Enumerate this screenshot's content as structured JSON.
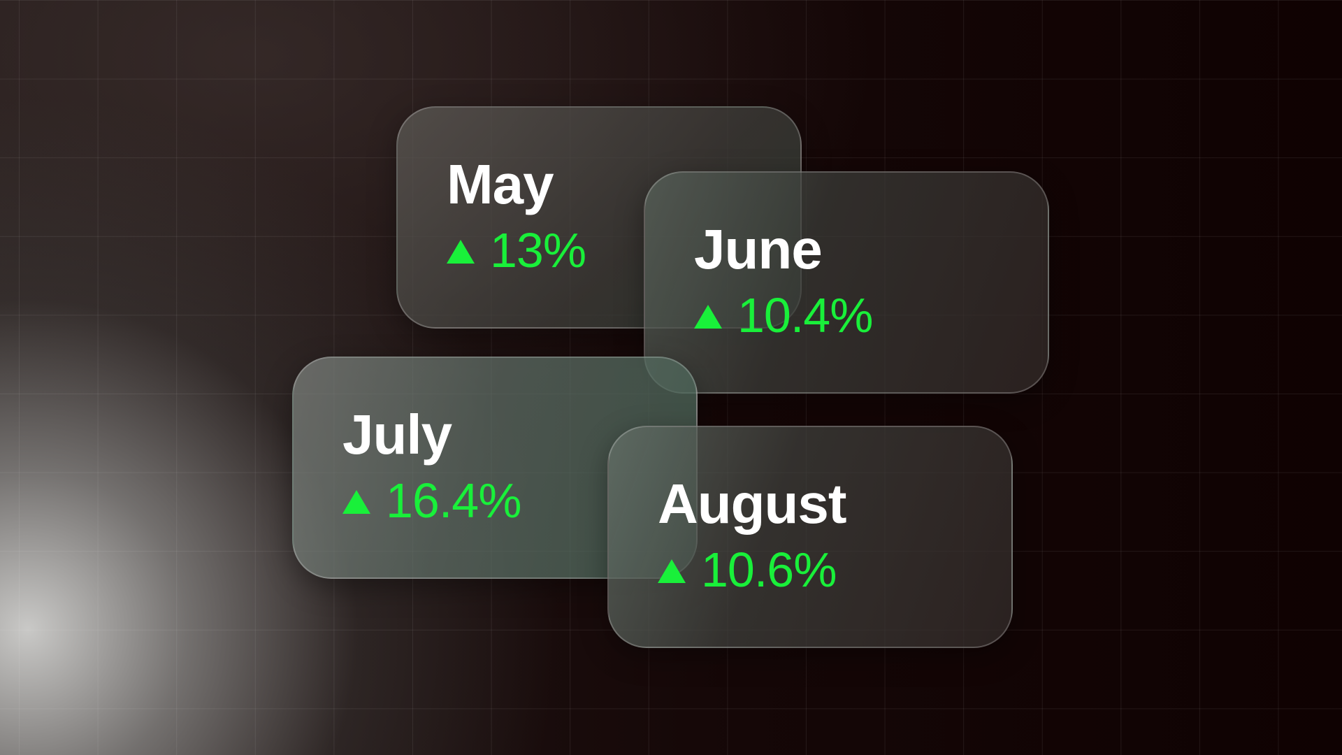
{
  "colors": {
    "positive": "#19f03a",
    "title_text": "#ffffff",
    "background": "#0e0303"
  },
  "cards": [
    {
      "month": "May",
      "trend_icon": "up-triangle-icon",
      "change": "13%"
    },
    {
      "month": "June",
      "trend_icon": "up-triangle-icon",
      "change": "10.4%"
    },
    {
      "month": "July",
      "trend_icon": "up-triangle-icon",
      "change": "16.4%"
    },
    {
      "month": "August",
      "trend_icon": "up-triangle-icon",
      "change": "10.6%"
    }
  ]
}
